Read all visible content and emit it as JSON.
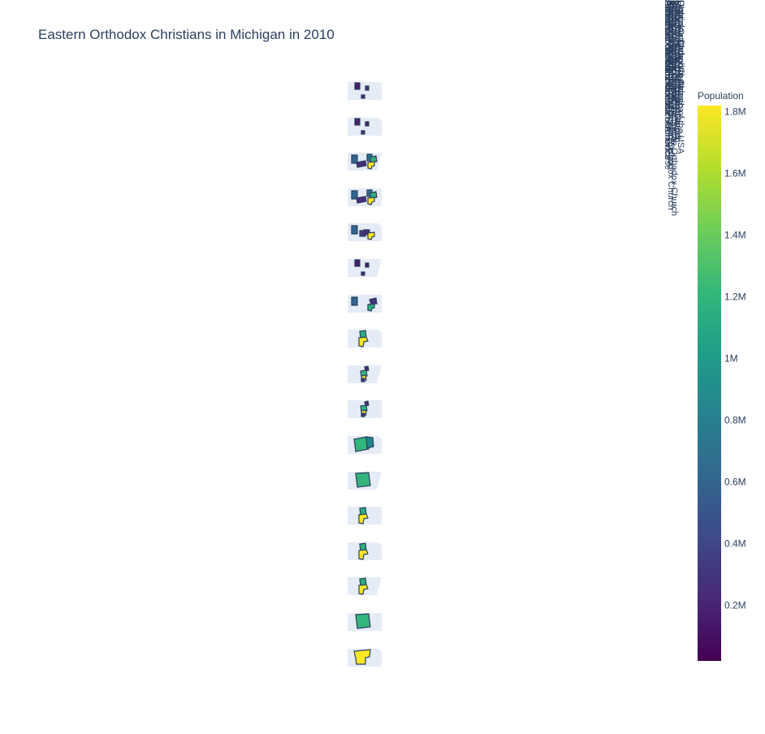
{
  "title": "Eastern Orthodox Christians in Michigan in 2010",
  "legend_entries": [
    "Antiochian Orthodox Christian Archdiocese",
    "Armenian Apostolic Church",
    "Bulgarian Eastern Orthodox Church",
    "Carpatho-Russian Orthodox Church",
    "Coptic Orthodox Church",
    "Greek Orthodox Archdiocese of America",
    "Macedonian Orthodox Church",
    "Malankara Archdiocese of the Syrian Orthodox Church",
    "Malankara Orthodox Syrian Church",
    "Orthodox Church in America",
    "Romanian Orthodox Archdiocese",
    "Russian Orthodox Church Outside Russia",
    "Serbian Orthodox Church",
    "Syriac Orthodox Church of Antioch",
    "Ukrainian Orthodox Church of the USA",
    "Albanian Orthodox Diocese",
    "Patriarchal Parishes of the Russian Orthodox Church"
  ],
  "colorbar": {
    "title": "Population",
    "tick_labels": [
      "0.2M",
      "0.4M",
      "0.6M",
      "0.8M",
      "1M",
      "1.2M",
      "1.4M",
      "1.6M",
      "1.8M"
    ],
    "colorscale": "Viridis",
    "colors": [
      "#440154",
      "#482878",
      "#3e4989",
      "#31688e",
      "#26828e",
      "#1f9e89",
      "#35b779",
      "#6ece58",
      "#b5de2b",
      "#fde725"
    ]
  },
  "chart_data": {
    "type": "choropleth-map",
    "title": "Eastern Orthodox Christians in Michigan in 2010",
    "color_variable": "Population",
    "colorbar_range": [
      20000,
      1820000
    ],
    "colorbar_ticks": [
      200000,
      400000,
      600000,
      800000,
      1000000,
      1200000,
      1400000,
      1600000,
      1800000
    ],
    "panels": [
      {
        "counties": [
          {
            "value": 250000
          },
          {
            "value": 180000
          },
          {
            "value": 160000
          }
        ]
      },
      {
        "counties": [
          {
            "value": 150000
          },
          {
            "value": 200000
          },
          {
            "value": 170000
          }
        ]
      },
      {
        "counties": [
          {
            "value": 600000
          },
          {
            "value": 250000
          },
          {
            "value": 700000
          },
          {
            "value": 1150000
          },
          {
            "value": 1820000
          }
        ]
      },
      {
        "counties": [
          {
            "value": 600000
          },
          {
            "value": 250000
          },
          {
            "value": 700000
          },
          {
            "value": 1150000
          },
          {
            "value": 1820000
          }
        ]
      },
      {
        "counties": [
          {
            "value": 600000
          },
          {
            "value": 300000
          },
          {
            "value": 250000
          },
          {
            "value": 1820000
          }
        ]
      },
      {
        "counties": [
          {
            "value": 120000
          },
          {
            "value": 200000
          },
          {
            "value": 160000
          }
        ]
      },
      {
        "counties": [
          {
            "value": 600000
          },
          {
            "value": 1150000
          },
          {
            "value": 250000
          }
        ]
      },
      {
        "counties": [
          {
            "value": 1150000
          },
          {
            "value": 1820000
          }
        ]
      },
      {
        "counties": [
          {
            "value": 250000
          },
          {
            "value": 1200000
          },
          {
            "value": 1820000
          },
          {
            "value": 300000
          }
        ]
      },
      {
        "counties": [
          {
            "value": 250000
          },
          {
            "value": 1150000
          },
          {
            "value": 1820000
          },
          {
            "value": 300000
          }
        ]
      },
      {
        "counties": [
          {
            "value": 1200000
          },
          {
            "value": 840000
          }
        ]
      },
      {
        "counties": [
          {
            "value": 1200000
          }
        ]
      },
      {
        "counties": [
          {
            "value": 1150000
          },
          {
            "value": 1820000
          }
        ]
      },
      {
        "counties": [
          {
            "value": 1150000
          },
          {
            "value": 1820000
          }
        ]
      },
      {
        "counties": [
          {
            "value": 1150000
          },
          {
            "value": 1820000
          }
        ]
      },
      {
        "counties": [
          {
            "value": 1200000
          }
        ]
      },
      {
        "counties": [
          {
            "value": 1820000
          }
        ]
      }
    ]
  }
}
